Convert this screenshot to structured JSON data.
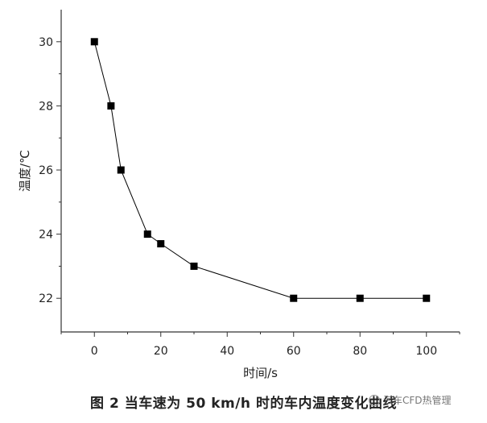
{
  "chart_data": {
    "type": "scatter",
    "line_connected": true,
    "x": [
      0,
      5,
      8,
      16,
      20,
      30,
      60,
      80,
      100
    ],
    "y": [
      30,
      28,
      26,
      24,
      23.7,
      23,
      22,
      22,
      22
    ],
    "xlabel": "时间/s",
    "ylabel": "温度/℃",
    "xlim": [
      -10,
      110
    ],
    "ylim": [
      20.95,
      31
    ],
    "xticks": [
      0,
      20,
      40,
      60,
      80,
      100
    ],
    "yticks": [
      22,
      24,
      26,
      28,
      30
    ],
    "grid": false,
    "marker": "square",
    "color": "#000000"
  },
  "caption": "图 2    当车速为 50 km/h 时的车内温度变化曲线",
  "watermark": "汽车CFD热管理"
}
